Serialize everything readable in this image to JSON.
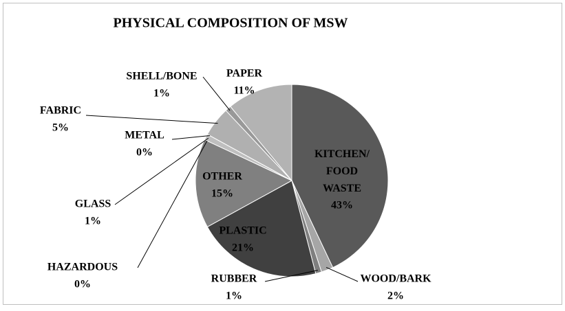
{
  "chart_data": {
    "type": "pie",
    "title": "PHYSICAL COMPOSITION OF MSW",
    "categories": [
      "KITCHEN/ FOOD WASTE",
      "WOOD/BARK",
      "RUBBER",
      "PLASTIC",
      "OTHER",
      "HAZARDOUS",
      "GLASS",
      "METAL",
      "FABRIC",
      "SHELL/BONE",
      "PAPER"
    ],
    "values": [
      43,
      2,
      1,
      21,
      15,
      0,
      1,
      0,
      5,
      1,
      11
    ],
    "value_labels": [
      "43%",
      "2%",
      "1%",
      "21%",
      "15%",
      "0%",
      "1%",
      "0%",
      "5%",
      "1%",
      "11%"
    ],
    "colors": [
      "#595959",
      "#a6a6a6",
      "#7f7f7f",
      "#404040",
      "#808080",
      "#d9d9d9",
      "#bfbfbf",
      "#e3e3e3",
      "#b0b0b0",
      "#999999",
      "#b3b3b3"
    ]
  }
}
